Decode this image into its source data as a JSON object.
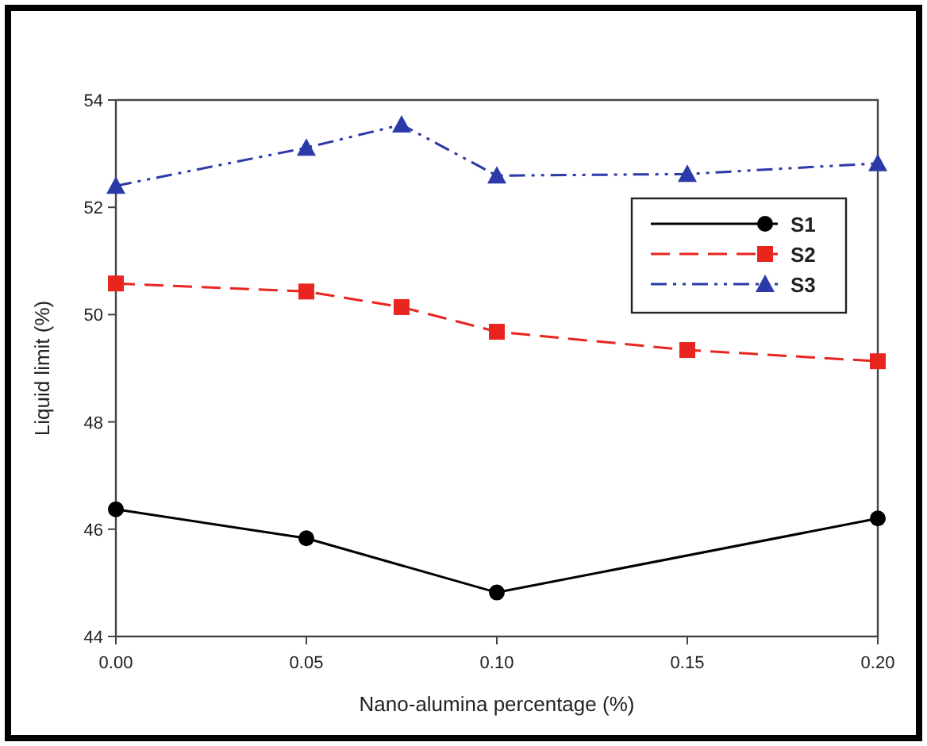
{
  "chart_data": {
    "type": "line",
    "xlabel": "Nano-alumina percentage (%)",
    "ylabel": "Liquid limit (%)",
    "x": [
      0,
      0.05,
      0.075,
      0.1,
      0.15,
      0.2
    ],
    "xlim": [
      0,
      0.2
    ],
    "xticks": [
      {
        "value": 0,
        "label": "0.00"
      },
      {
        "value": 0.05,
        "label": "0.05"
      },
      {
        "value": 0.1,
        "label": "0.10"
      },
      {
        "value": 0.15,
        "label": "0.15"
      },
      {
        "value": 0.2,
        "label": "0.20"
      }
    ],
    "ylim": [
      44,
      54
    ],
    "yticks": [
      44,
      46,
      48,
      50,
      52,
      54
    ],
    "legend": "top right",
    "grid": false,
    "series": [
      {
        "name": "S1",
        "color": "#000000",
        "x": [
          0,
          0.05,
          0.1,
          0.2
        ],
        "values": [
          46.37,
          45.83,
          44.82,
          46.2
        ],
        "marker": "circle",
        "line_style": "solid"
      },
      {
        "name": "S2",
        "color": "#e8251f",
        "values": [
          50.58,
          50.43,
          50.14,
          49.68,
          49.34,
          49.13
        ],
        "marker": "square",
        "line_style": "dashed"
      },
      {
        "name": "S3",
        "color": "#2b3aa8",
        "values": [
          52.4,
          53.11,
          53.54,
          52.59,
          52.62,
          52.82
        ],
        "marker": "triangle",
        "line_style": "dashdotdot"
      }
    ]
  }
}
